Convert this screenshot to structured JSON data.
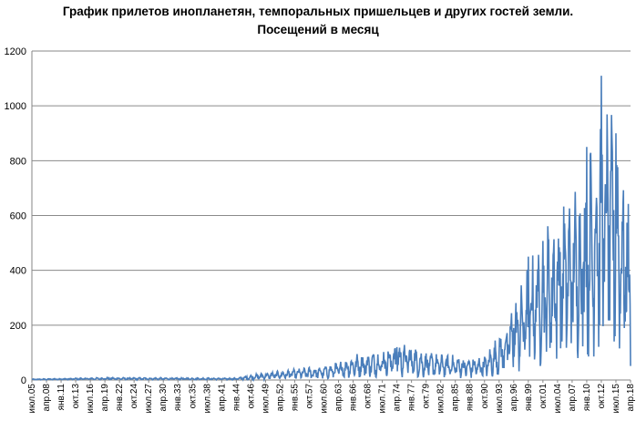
{
  "chart_data": {
    "type": "line",
    "title": "График прилетов инопланетян, темпоральных пришельцев и других гостей земли.",
    "subtitle": "Посещений в месяц",
    "xlabel": "",
    "ylabel": "",
    "ylim": [
      0,
      1200
    ],
    "yticks": [
      0,
      200,
      400,
      600,
      800,
      1000,
      1200
    ],
    "grid": "horizontal",
    "legend": "none",
    "line_color": "#4a7ebb",
    "x_start": "июл.05",
    "x_end": "апр.18",
    "x_tick_labels": [
      "июл.05",
      "апр.08",
      "янв.11",
      "окт.13",
      "июл.16",
      "апр.19",
      "янв.22",
      "окт.24",
      "июл.27",
      "апр.30",
      "янв.33",
      "окт.35",
      "июл.38",
      "апр.41",
      "янв.44",
      "окт.46",
      "июл.49",
      "апр.52",
      "янв.55",
      "окт.57",
      "июл.60",
      "апр.63",
      "янв.66",
      "окт.68",
      "июл.71",
      "апр.74",
      "янв.77",
      "окт.79",
      "июл.82",
      "апр.85",
      "янв.88",
      "окт.90",
      "июл.93",
      "апр.96",
      "янв.99",
      "окт.01",
      "июл.04",
      "апр.07",
      "янв.10",
      "окт.12",
      "июл.15",
      "апр.18"
    ],
    "anchors": [
      {
        "x": "июл.05",
        "y": 2
      },
      {
        "x": "апр.19",
        "y": 5
      },
      {
        "x": "янв.44",
        "y": 4
      },
      {
        "x": "окт.46",
        "y": 10
      },
      {
        "x": "июл.49",
        "y": 14
      },
      {
        "x": "янв.55",
        "y": 22
      },
      {
        "x": "июл.60",
        "y": 28
      },
      {
        "x": "апр.63",
        "y": 36
      },
      {
        "x": "янв.66",
        "y": 50
      },
      {
        "x": "июл.71",
        "y": 60
      },
      {
        "x": "апр.74",
        "y": 75
      },
      {
        "x": "янв.77",
        "y": 70
      },
      {
        "x": "окт.79",
        "y": 55
      },
      {
        "x": "янв.88",
        "y": 45
      },
      {
        "x": "окт.90",
        "y": 48
      },
      {
        "x": "июл.93",
        "y": 90
      },
      {
        "x": "апр.96",
        "y": 150
      },
      {
        "x": "янв.99",
        "y": 230
      },
      {
        "x": "окт.01",
        "y": 300
      },
      {
        "x": "июл.04",
        "y": 340
      },
      {
        "x": "апр.07",
        "y": 380
      },
      {
        "x": "янв.10",
        "y": 430
      },
      {
        "x": "окт.12",
        "y": 560
      },
      {
        "x": "июл.15",
        "y": 520
      },
      {
        "x": "апр.18",
        "y": 330
      }
    ],
    "peaks": [
      {
        "x": "окт.12",
        "y": 1110
      },
      {
        "x": "июл.15",
        "y": 900
      },
      {
        "x": "янв.10",
        "y": 850
      },
      {
        "x": "апр.96",
        "y": 190
      },
      {
        "x": "янв.99",
        "y": 450
      },
      {
        "x": "апр.74",
        "y": 120
      }
    ]
  }
}
